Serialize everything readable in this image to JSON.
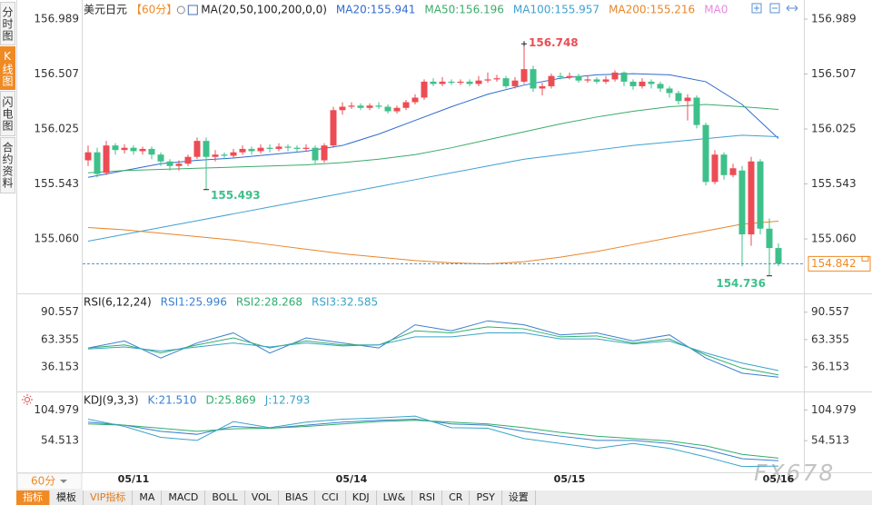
{
  "sidebar": [
    "分时图",
    "K线图",
    "闪电图",
    "合约资料"
  ],
  "period_tag": "60分",
  "watermark": "FX678",
  "toolbar": [
    "指标",
    "模板",
    "VIP指标",
    "MA",
    "MACD",
    "BOLL",
    "VOL",
    "BIAS",
    "CCI",
    "KDJ",
    "LW&",
    "RSI",
    "CR",
    "PSY",
    "设置"
  ],
  "chart_data": [
    {
      "type": "candlestick",
      "title": "美元日元",
      "subtitle": "【60分】",
      "indicator": "MA(20,50,100,200,0,0)",
      "up_color": "#ec4c54",
      "down_color": "#3ec08a",
      "last_price_color": "#f08a24",
      "categories": [
        null,
        null,
        null,
        null,
        null,
        "05/11",
        null,
        null,
        null,
        null,
        null,
        null,
        null,
        null,
        null,
        null,
        null,
        null,
        null,
        null,
        null,
        null,
        null,
        null,
        null,
        null,
        null,
        null,
        null,
        "05/14",
        null,
        null,
        null,
        null,
        null,
        null,
        null,
        null,
        null,
        null,
        null,
        null,
        null,
        null,
        null,
        null,
        null,
        null,
        null,
        null,
        null,
        null,
        null,
        "05/15",
        null,
        null,
        null,
        null,
        null,
        null,
        null,
        null,
        null,
        null,
        null,
        null,
        null,
        null,
        null,
        null,
        null,
        null,
        null,
        null,
        null,
        null,
        "05/16"
      ],
      "candles": [
        [
          155.75,
          155.82,
          155.88,
          155.7
        ],
        [
          155.82,
          155.63,
          155.86,
          155.6
        ],
        [
          155.64,
          155.88,
          155.92,
          155.62
        ],
        [
          155.88,
          155.84,
          155.9,
          155.8
        ],
        [
          155.84,
          155.86,
          155.89,
          155.81
        ],
        [
          155.86,
          155.83,
          155.88,
          155.8
        ],
        [
          155.83,
          155.85,
          155.87,
          155.8
        ],
        [
          155.85,
          155.8,
          155.87,
          155.76
        ],
        [
          155.8,
          155.74,
          155.82,
          155.7
        ],
        [
          155.74,
          155.7,
          155.76,
          155.66
        ],
        [
          155.7,
          155.72,
          155.75,
          155.66
        ],
        [
          155.72,
          155.78,
          155.8,
          155.7
        ],
        [
          155.78,
          155.92,
          155.95,
          155.76
        ],
        [
          155.92,
          155.78,
          155.95,
          155.493
        ],
        [
          155.78,
          155.8,
          155.84,
          155.74
        ],
        [
          155.8,
          155.79,
          155.82,
          155.76
        ],
        [
          155.79,
          155.82,
          155.85,
          155.77
        ],
        [
          155.82,
          155.85,
          155.88,
          155.8
        ],
        [
          155.85,
          155.83,
          155.87,
          155.8
        ],
        [
          155.83,
          155.86,
          155.89,
          155.81
        ],
        [
          155.86,
          155.85,
          155.89,
          155.82
        ],
        [
          155.85,
          155.87,
          155.9,
          155.83
        ],
        [
          155.87,
          155.86,
          155.89,
          155.83
        ],
        [
          155.86,
          155.85,
          155.88,
          155.82
        ],
        [
          155.85,
          155.86,
          155.89,
          155.83
        ],
        [
          155.86,
          155.75,
          155.88,
          155.72
        ],
        [
          155.75,
          155.88,
          155.9,
          155.73
        ],
        [
          155.88,
          156.19,
          156.22,
          155.86
        ],
        [
          156.19,
          156.22,
          156.26,
          156.15
        ],
        [
          156.22,
          156.23,
          156.26,
          156.2
        ],
        [
          156.23,
          156.21,
          156.25,
          156.19
        ],
        [
          156.21,
          156.23,
          156.25,
          156.19
        ],
        [
          156.23,
          156.22,
          156.26,
          156.2
        ],
        [
          156.22,
          156.18,
          156.24,
          156.16
        ],
        [
          156.18,
          156.21,
          156.23,
          156.16
        ],
        [
          156.21,
          156.26,
          156.28,
          156.19
        ],
        [
          156.26,
          156.3,
          156.33,
          156.24
        ],
        [
          156.3,
          156.44,
          156.46,
          156.28
        ],
        [
          156.44,
          156.42,
          156.47,
          156.4
        ],
        [
          156.42,
          156.44,
          156.48,
          156.4
        ],
        [
          156.44,
          156.43,
          156.46,
          156.41
        ],
        [
          156.43,
          156.44,
          156.46,
          156.41
        ],
        [
          156.44,
          156.42,
          156.46,
          156.4
        ],
        [
          156.42,
          156.45,
          156.49,
          156.4
        ],
        [
          156.45,
          156.46,
          156.52,
          156.43
        ],
        [
          156.46,
          156.47,
          156.5,
          156.44
        ],
        [
          156.47,
          156.4,
          156.49,
          156.38
        ],
        [
          156.4,
          156.45,
          156.48,
          156.38
        ],
        [
          156.44,
          156.55,
          156.748,
          156.42
        ],
        [
          156.55,
          156.38,
          156.58,
          156.35
        ],
        [
          156.38,
          156.4,
          156.43,
          156.32
        ],
        [
          156.4,
          156.49,
          156.51,
          156.38
        ],
        [
          156.49,
          156.48,
          156.52,
          156.46
        ],
        [
          156.48,
          156.49,
          156.52,
          156.46
        ],
        [
          156.49,
          156.45,
          156.51,
          156.43
        ],
        [
          156.45,
          156.46,
          156.49,
          156.43
        ],
        [
          156.46,
          156.44,
          156.48,
          156.42
        ],
        [
          156.44,
          156.46,
          156.49,
          156.42
        ],
        [
          156.46,
          156.52,
          156.54,
          156.44
        ],
        [
          156.52,
          156.44,
          156.53,
          156.4
        ],
        [
          156.44,
          156.4,
          156.46,
          156.37
        ],
        [
          156.4,
          156.44,
          156.47,
          156.38
        ],
        [
          156.44,
          156.42,
          156.46,
          156.38
        ],
        [
          156.42,
          156.38,
          156.44,
          156.35
        ],
        [
          156.38,
          156.34,
          156.4,
          156.3
        ],
        [
          156.34,
          156.27,
          156.36,
          156.24
        ],
        [
          156.27,
          156.3,
          156.33,
          156.1
        ],
        [
          156.3,
          156.06,
          156.32,
          156.03
        ],
        [
          156.06,
          155.56,
          156.08,
          155.53
        ],
        [
          155.56,
          155.8,
          155.84,
          155.54
        ],
        [
          155.8,
          155.62,
          155.82,
          155.58
        ],
        [
          155.62,
          155.68,
          155.72,
          155.6
        ],
        [
          155.66,
          155.1,
          155.7,
          154.82
        ],
        [
          155.1,
          155.74,
          155.78,
          155.0
        ],
        [
          155.74,
          155.15,
          155.76,
          155.1
        ],
        [
          155.15,
          154.98,
          155.24,
          154.736
        ],
        [
          154.98,
          154.842,
          155.02,
          154.82
        ]
      ],
      "x": [
        0,
        4,
        8,
        12,
        16,
        20,
        24,
        28,
        32,
        36,
        40,
        44,
        48,
        52,
        56,
        60,
        64,
        68,
        72,
        76
      ],
      "series": [
        {
          "name": "MA20:155.941",
          "color": "#2f6bd0",
          "values": [
            155.6,
            155.66,
            155.72,
            155.75,
            155.77,
            155.8,
            155.83,
            155.88,
            155.98,
            156.1,
            156.22,
            156.33,
            156.41,
            156.47,
            156.5,
            156.51,
            156.5,
            156.44,
            156.24,
            155.941
          ]
        },
        {
          "name": "MA50:156.196",
          "color": "#3cab6a",
          "values": [
            155.64,
            155.66,
            155.67,
            155.68,
            155.69,
            155.7,
            155.71,
            155.73,
            155.76,
            155.8,
            155.86,
            155.93,
            156.0,
            156.07,
            156.13,
            156.18,
            156.22,
            156.24,
            156.22,
            156.196
          ]
        },
        {
          "name": "MA100:155.957",
          "color": "#3fa0d2",
          "values": [
            155.04,
            155.1,
            155.16,
            155.22,
            155.28,
            155.34,
            155.4,
            155.46,
            155.52,
            155.58,
            155.64,
            155.7,
            155.76,
            155.8,
            155.84,
            155.88,
            155.91,
            155.94,
            155.97,
            155.957
          ]
        },
        {
          "name": "MA200:155.216",
          "color": "#e8862a",
          "values": [
            155.16,
            155.14,
            155.11,
            155.08,
            155.05,
            155.01,
            154.97,
            154.93,
            154.9,
            154.87,
            154.85,
            154.84,
            154.86,
            154.9,
            154.95,
            155.01,
            155.07,
            155.13,
            155.19,
            155.216
          ]
        },
        {
          "name": "MA0",
          "color": "#e58be0"
        }
      ],
      "ylim": [
        154.59,
        157.093
      ],
      "yticks": [
        156.989,
        156.507,
        156.025,
        155.543,
        {
          "value": 155.06,
          "label": "155.060"
        }
      ]
    },
    {
      "type": "line",
      "title": "RSI(6,12,24)",
      "x": [
        0,
        4,
        8,
        12,
        16,
        20,
        24,
        28,
        32,
        36,
        40,
        44,
        48,
        52,
        56,
        60,
        64,
        68,
        72,
        76
      ],
      "series": [
        {
          "name": "RSI1:25.996",
          "color": "#3a7fd0",
          "values": [
            55,
            62,
            45,
            60,
            70,
            50,
            65,
            60,
            55,
            78,
            72,
            82,
            78,
            68,
            70,
            62,
            68,
            45,
            30,
            25.996
          ]
        },
        {
          "name": "RSI2:28.268",
          "color": "#2fae6b",
          "values": [
            55,
            58,
            50,
            58,
            65,
            55,
            62,
            58,
            58,
            72,
            70,
            76,
            74,
            66,
            67,
            60,
            64,
            48,
            35,
            28.268
          ]
        },
        {
          "name": "RSI3:32.585",
          "color": "#3ba3c8",
          "values": [
            54,
            56,
            52,
            56,
            60,
            56,
            60,
            57,
            58,
            66,
            66,
            70,
            70,
            64,
            64,
            59,
            62,
            50,
            40,
            32.585
          ]
        }
      ],
      "ylim": [
        12.7,
        107.44
      ],
      "yticks": [
        90.557,
        63.355,
        36.153
      ]
    },
    {
      "type": "line",
      "title": "KDJ(9,3,3)",
      "x": [
        0,
        4,
        8,
        12,
        16,
        20,
        24,
        28,
        32,
        36,
        40,
        44,
        48,
        52,
        56,
        60,
        64,
        68,
        72,
        76
      ],
      "series": [
        {
          "name": "K:21.510",
          "color": "#3a7fd0",
          "values": [
            85,
            80,
            70,
            65,
            78,
            75,
            80,
            85,
            88,
            90,
            82,
            80,
            70,
            62,
            55,
            55,
            50,
            40,
            25,
            21.51
          ]
        },
        {
          "name": "D:25.869",
          "color": "#2fae6b",
          "values": [
            82,
            80,
            75,
            70,
            74,
            75,
            78,
            82,
            86,
            88,
            85,
            82,
            76,
            68,
            62,
            58,
            54,
            46,
            32,
            25.869
          ]
        },
        {
          "name": "J:12.793",
          "color": "#3ba3c8",
          "values": [
            90,
            78,
            60,
            55,
            86,
            76,
            85,
            90,
            92,
            95,
            76,
            75,
            58,
            50,
            42,
            50,
            42,
            28,
            12,
            12.793
          ]
        }
      ],
      "ylim": [
        2.53,
        132.5
      ],
      "yticks": [
        104.979,
        54.513
      ]
    }
  ]
}
